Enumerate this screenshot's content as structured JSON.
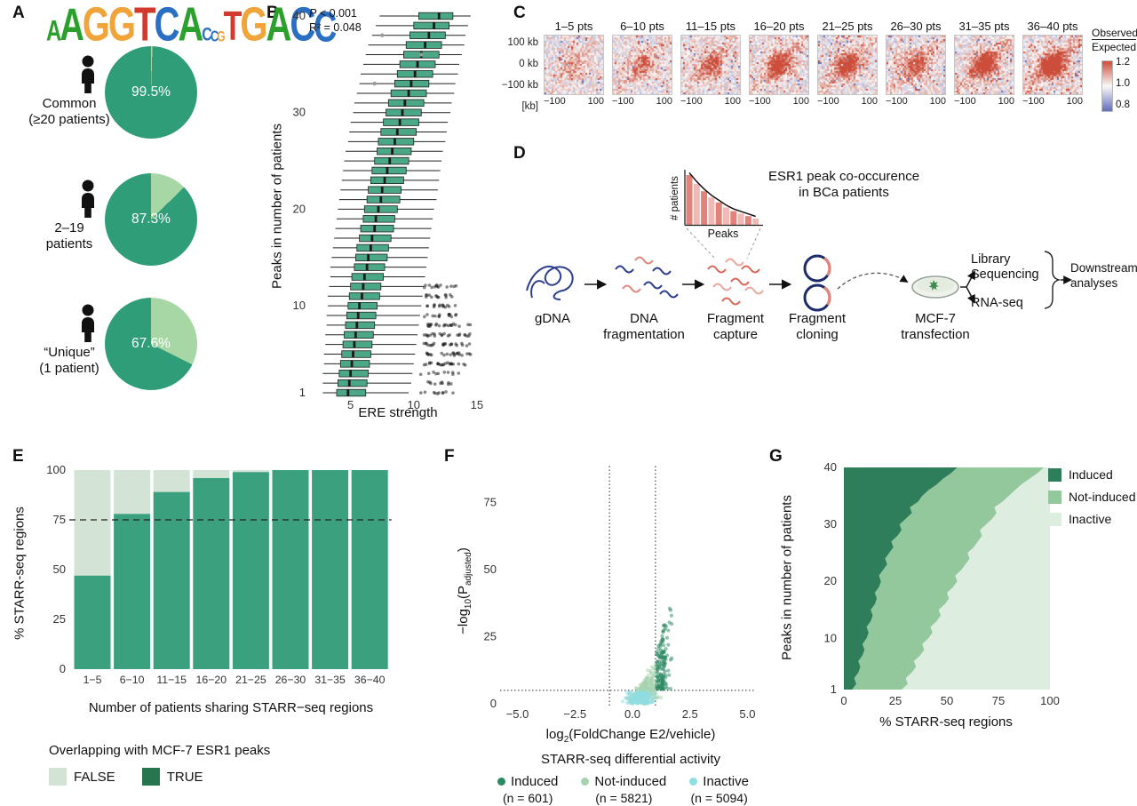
{
  "panels": {
    "a": "A",
    "b": "B",
    "c": "C",
    "d": "D",
    "e": "E",
    "f": "F",
    "g": "G"
  },
  "panel_a": {
    "logo": [
      {
        "ch": "A",
        "s": 0.6,
        "c": "#2ca02c"
      },
      {
        "ch": "A",
        "s": 0.95,
        "c": "#2ca02c"
      },
      {
        "ch": "G",
        "s": 1.0,
        "c": "#f0a43a"
      },
      {
        "ch": "G",
        "s": 1.0,
        "c": "#f0a43a"
      },
      {
        "ch": "T",
        "s": 1.0,
        "c": "#d23a2e"
      },
      {
        "ch": "C",
        "s": 1.0,
        "c": "#2a6fc2"
      },
      {
        "ch": "A",
        "s": 1.0,
        "c": "#2ca02c"
      },
      {
        "ch": "C",
        "s": 0.4,
        "c": "#2a6fc2"
      },
      {
        "ch": "C",
        "s": 0.32,
        "c": "#2a6fc2"
      },
      {
        "ch": "G",
        "s": 0.3,
        "c": "#f0a43a"
      },
      {
        "ch": "T",
        "s": 0.85,
        "c": "#d23a2e"
      },
      {
        "ch": "G",
        "s": 1.0,
        "c": "#f0a43a"
      },
      {
        "ch": "A",
        "s": 1.0,
        "c": "#2ca02c"
      },
      {
        "ch": "C",
        "s": 1.0,
        "c": "#2a6fc2"
      },
      {
        "ch": "C",
        "s": 0.9,
        "c": "#2a6fc2"
      }
    ]
  },
  "panel_d": {
    "inset_title1": "ESR1 peak co-occurence",
    "inset_title2": "in BCa patients",
    "inset_ylabel": "# patients",
    "inset_xlabel": "Peaks",
    "inset_bars": [
      40,
      33,
      27,
      22,
      18,
      14,
      11,
      9,
      7,
      5
    ],
    "stages": [
      {
        "l1": "gDNA",
        "l2": ""
      },
      {
        "l1": "DNA",
        "l2": "fragmentation"
      },
      {
        "l1": "Fragment",
        "l2": "capture"
      },
      {
        "l1": "Fragment",
        "l2": "cloning"
      },
      {
        "l1": "MCF-7",
        "l2": "transfection"
      }
    ],
    "out1a": "Library",
    "out1b": "Sequencing",
    "out2": "RNA-seq",
    "final1": "Downstream",
    "final2": "analyses"
  },
  "chart_data": [
    {
      "id": "a_pies",
      "type": "pie",
      "colors": {
        "major": "#2f9e78",
        "minor": "#a6d7a4"
      },
      "pies": [
        {
          "label1": "Common",
          "label2": "(≥20 patients)",
          "percent": 99.5,
          "value_text": "99.5%"
        },
        {
          "label1": "2–19",
          "label2": "patients",
          "percent": 87.3,
          "value_text": "87.3%"
        },
        {
          "label1": "“Unique”",
          "label2": "(1 patient)",
          "percent": 67.6,
          "value_text": "67.6%"
        }
      ]
    },
    {
      "id": "b_box",
      "type": "boxplot",
      "ann_p_italic": "P",
      "ann_p_rest": " < 0.001",
      "ann_r2": "R² = 0.048",
      "xlabel": "ERE strength",
      "ylabel": "Peaks in number of patients",
      "xticks": [
        5,
        10,
        15
      ],
      "yticks": [
        1,
        10,
        20,
        30,
        40
      ],
      "xlim": [
        2,
        15.5
      ],
      "box_color": "#4aa886",
      "rows": [
        [
          2.8,
          3.9,
          4.8,
          6.2,
          9.6
        ],
        [
          2.8,
          4.0,
          4.9,
          6.3,
          9.8
        ],
        [
          2.8,
          4.1,
          5.0,
          6.4,
          9.9
        ],
        [
          2.9,
          4.2,
          5.1,
          6.5,
          10.0
        ],
        [
          2.9,
          4.3,
          5.2,
          6.6,
          10.1
        ],
        [
          3.0,
          4.4,
          5.3,
          6.7,
          10.2
        ],
        [
          3.0,
          4.5,
          5.4,
          6.8,
          10.3
        ],
        [
          3.1,
          4.6,
          5.5,
          6.9,
          10.4
        ],
        [
          3.1,
          4.7,
          5.6,
          7.0,
          10.5
        ],
        [
          3.2,
          4.8,
          5.7,
          7.1,
          10.6
        ],
        [
          3.2,
          4.9,
          5.9,
          7.3,
          10.7
        ],
        [
          3.3,
          5.0,
          6.0,
          7.4,
          10.8
        ],
        [
          3.4,
          5.1,
          6.1,
          7.6,
          10.9
        ],
        [
          3.4,
          5.3,
          6.3,
          7.7,
          11.0
        ],
        [
          3.5,
          5.4,
          6.4,
          7.9,
          11.1
        ],
        [
          3.6,
          5.5,
          6.6,
          8.0,
          11.2
        ],
        [
          3.7,
          5.7,
          6.7,
          8.2,
          11.3
        ],
        [
          3.8,
          5.8,
          6.9,
          8.4,
          11.4
        ],
        [
          3.9,
          6.0,
          7.0,
          8.5,
          11.5
        ],
        [
          4.0,
          6.1,
          7.2,
          8.7,
          11.6
        ],
        [
          4.1,
          6.3,
          7.4,
          8.9,
          11.8
        ],
        [
          4.2,
          6.4,
          7.5,
          9.0,
          11.9
        ],
        [
          4.3,
          6.6,
          7.7,
          9.2,
          12.0
        ],
        [
          4.4,
          6.7,
          7.9,
          9.4,
          12.1
        ],
        [
          4.5,
          6.9,
          8.1,
          9.6,
          12.2
        ],
        [
          4.6,
          7.1,
          8.3,
          9.8,
          12.3
        ],
        [
          4.8,
          7.2,
          8.5,
          10.0,
          12.5
        ],
        [
          4.9,
          7.4,
          8.7,
          10.2,
          12.6
        ],
        [
          5.0,
          7.6,
          8.9,
          10.4,
          12.7
        ],
        [
          5.2,
          7.8,
          9.1,
          10.6,
          12.9
        ],
        [
          5.3,
          8.0,
          9.3,
          10.8,
          13.0
        ],
        [
          5.5,
          8.2,
          9.6,
          11.0,
          13.2
        ],
        [
          5.7,
          8.5,
          9.8,
          11.2,
          13.3
        ],
        [
          5.8,
          8.7,
          10.1,
          11.5,
          13.5
        ],
        [
          6.0,
          8.9,
          10.3,
          11.7,
          13.6
        ],
        [
          6.2,
          9.2,
          10.6,
          12.0,
          13.8
        ],
        [
          6.4,
          9.4,
          10.9,
          12.2,
          14.0
        ],
        [
          6.7,
          9.7,
          11.2,
          12.5,
          14.1
        ],
        [
          7.0,
          10.0,
          11.6,
          12.8,
          14.3
        ],
        [
          7.3,
          10.4,
          12.0,
          13.1,
          14.5
        ]
      ],
      "outlier_clusters": [
        {
          "rows": [
            1,
            3
          ],
          "range": [
            10.3,
            13.6
          ],
          "count": 10
        },
        {
          "rows": [
            4,
            8
          ],
          "range": [
            10.8,
            14.5
          ],
          "count": 22
        },
        {
          "rows": [
            9,
            12
          ],
          "range": [
            10.8,
            13.6
          ],
          "count": 14
        }
      ],
      "gray_outliers": [
        {
          "row": 38,
          "x": 7.5
        },
        {
          "row": 33,
          "x": 6.9
        },
        {
          "row": 36,
          "x": 10.6
        }
      ]
    },
    {
      "id": "c_heatmaps",
      "type": "heatmap",
      "panel_titles": [
        "1–5 pts",
        "6–10 pts",
        "11–15 pts",
        "16–20 pts",
        "21–25 pts",
        "26–30 pts",
        "31–35 pts",
        "36–40 pts"
      ],
      "yticks": [
        "100 kb",
        "0 kb",
        "−100 kb"
      ],
      "xticks": [
        "−100",
        "100"
      ],
      "x_unit": "[kb]",
      "colorbar": {
        "title1": "Observed",
        "title2": "Expected",
        "ticks": [
          "1.2",
          "1.0",
          "0.8"
        ],
        "high": "#cb4d3a",
        "mid": "#faf9f8",
        "low": "#626eba"
      },
      "center_intensity": [
        0.3,
        0.45,
        0.55,
        0.7,
        0.75,
        0.6,
        0.85,
        0.95
      ]
    },
    {
      "id": "e_bars",
      "type": "stacked_bar",
      "categories": [
        "1−5",
        "6−10",
        "11−15",
        "16−20",
        "21−25",
        "26−30",
        "31−35",
        "36−40"
      ],
      "true_pct": [
        47,
        78,
        89,
        96,
        99,
        100,
        100,
        100
      ],
      "xlabel": "Number of patients sharing STARR−seq regions",
      "ylabel": "% STARR-seq regions",
      "yticks": [
        0,
        25,
        50,
        75,
        100
      ],
      "dashed_line": 75,
      "bar_true_color": "#3aa07e",
      "bar_false_color": "#d3e3d6",
      "legend_title": "Overlapping with MCF-7 ESR1 peaks",
      "legend": [
        {
          "label": "FALSE",
          "color": "#d3e3d6"
        },
        {
          "label": "TRUE",
          "color": "#27764f"
        }
      ]
    },
    {
      "id": "f_volcano",
      "type": "scatter",
      "xlabel_parts": [
        "log",
        "2",
        "(FoldChange E2/vehicle)"
      ],
      "ylabel_parts": [
        "−log",
        "10",
        "(P",
        "adjusted",
        ")"
      ],
      "xticks": [
        "−5.0",
        "−2.5",
        "0.0",
        "2.5",
        "5.0"
      ],
      "xtick_vals": [
        -5,
        -2.5,
        0,
        2.5,
        5
      ],
      "yticks": [
        0,
        25,
        50,
        75
      ],
      "xlim": [
        -5.6,
        5.6
      ],
      "ylim": [
        0,
        88
      ],
      "thresholds": {
        "x": [
          -1,
          1
        ],
        "y": 5
      },
      "legend_title": "STARR-seq differential activity",
      "groups": [
        {
          "name": "Induced",
          "n_text": "(n = 601)",
          "n": 601,
          "color": "#2c8a63"
        },
        {
          "name": "Not-induced",
          "n_text": "(n = 5821)",
          "n": 5821,
          "color": "#a8d3b0"
        },
        {
          "name": "Inactive",
          "n_text": "(n = 5094)",
          "n": 5094,
          "color": "#8fdde3"
        }
      ],
      "rendered_points": {
        "induced": 150,
        "not_induced": 330,
        "inactive": 140,
        "seed": 7
      }
    },
    {
      "id": "g_area",
      "type": "area",
      "xlabel": "% STARR-seq regions",
      "ylabel": "Peaks in number of patients",
      "xticks": [
        0,
        25,
        50,
        75,
        100
      ],
      "yticks": [
        1,
        10,
        20,
        30,
        40
      ],
      "legend": [
        {
          "label": "Induced",
          "color": "#2f7e5b"
        },
        {
          "label": "Not-induced",
          "color": "#93c89c"
        },
        {
          "label": "Inactive",
          "color": "#ddeee0"
        }
      ],
      "induced_boundary": [
        4,
        6,
        5,
        7,
        8,
        7,
        9,
        10,
        9,
        11,
        12,
        11,
        13,
        14,
        13,
        15,
        16,
        15,
        17,
        18,
        17,
        19,
        21,
        20,
        22,
        24,
        23,
        26,
        28,
        27,
        30,
        33,
        32,
        36,
        38,
        41,
        45,
        48,
        52,
        55
      ],
      "notinduced_boundary": [
        28,
        31,
        30,
        33,
        35,
        34,
        37,
        39,
        38,
        41,
        43,
        42,
        45,
        47,
        46,
        49,
        51,
        50,
        53,
        55,
        54,
        57,
        59,
        61,
        60,
        63,
        65,
        67,
        66,
        69,
        72,
        74,
        73,
        77,
        80,
        83,
        86,
        90,
        94,
        97
      ]
    }
  ]
}
